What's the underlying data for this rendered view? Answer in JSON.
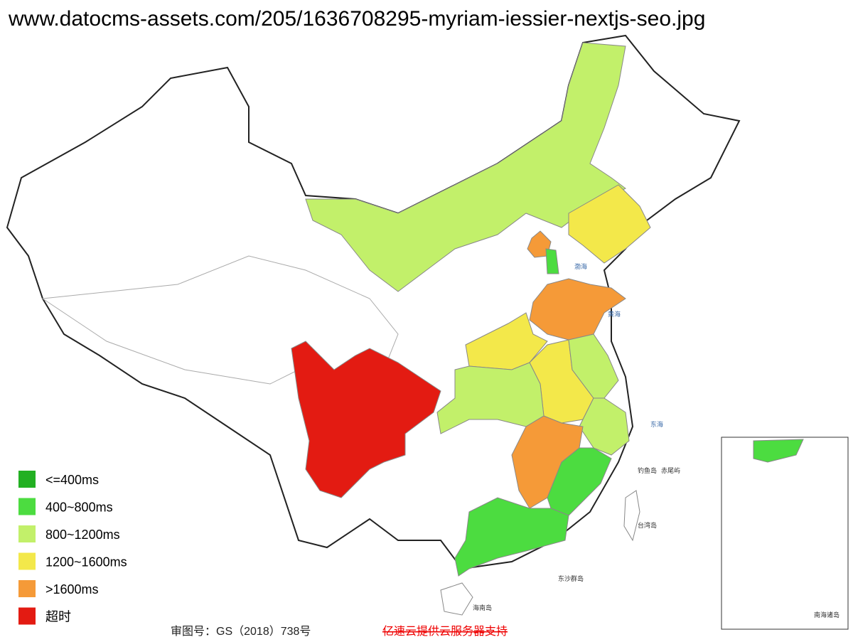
{
  "header": {
    "url": "www.datocms-assets.com/205/1636708295-myriam-iessier-nextjs-seo.jpg"
  },
  "legend": {
    "items": [
      {
        "label": "<=400ms",
        "color": "#22b022"
      },
      {
        "label": "400~800ms",
        "color": "#4cdc40"
      },
      {
        "label": "800~1200ms",
        "color": "#c2f06a"
      },
      {
        "label": "1200~1600ms",
        "color": "#f3e84a"
      },
      {
        "label": ">1600ms",
        "color": "#f59a38"
      },
      {
        "label": "超时",
        "color": "#e31b12"
      }
    ]
  },
  "map": {
    "labels": [
      "渤海",
      "黄海",
      "东海",
      "钓鱼岛",
      "赤尾屿",
      "台湾岛",
      "东沙群岛",
      "海南岛",
      "南海诸岛"
    ]
  },
  "footer": {
    "approval": "审图号：GS（2018）738号",
    "sponsor": "亿速云提供云服务器支持"
  }
}
